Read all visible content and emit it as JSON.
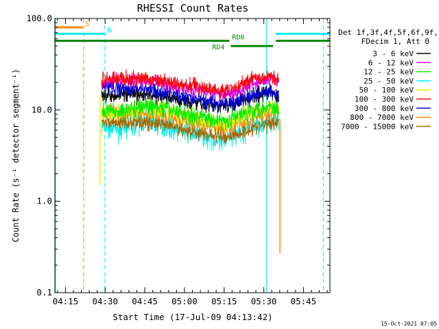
{
  "chart_data": {
    "type": "line",
    "title": "RHESSI Count Rates",
    "xlabel": "Start Time (17-Jul-09 04:13:42)",
    "ylabel": "Count Rate (s⁻¹ detector segment⁻¹)",
    "yscale": "log",
    "xlim_minutes": [
      -4,
      100
    ],
    "ylim": [
      0.1,
      100
    ],
    "x_ticks": [
      {
        "min": 0,
        "label": "04:15"
      },
      {
        "min": 15,
        "label": "04:30"
      },
      {
        "min": 30,
        "label": "04:45"
      },
      {
        "min": 45,
        "label": "05:00"
      },
      {
        "min": 60,
        "label": "05:15"
      },
      {
        "min": 75,
        "label": "05:30"
      },
      {
        "min": 90,
        "label": "05:45"
      }
    ],
    "y_ticks": [
      {
        "value": 0.1,
        "label": "0.1"
      },
      {
        "value": 1,
        "label": "1.0"
      },
      {
        "value": 10,
        "label": "10.0"
      },
      {
        "value": 100,
        "label": "100.0"
      }
    ],
    "legend_title": [
      "Det 1f,3f,4f,5f,6f,9f,",
      "FDecim 1, Att 0"
    ],
    "legend_position": "right",
    "grid": false,
    "series": [
      {
        "name": "3 - 6 keV",
        "color": "#000000",
        "noise": 0.045,
        "x": [
          13.7,
          20,
          30,
          40,
          50,
          60,
          65,
          70,
          75,
          78,
          80.7
        ],
        "y": [
          14.5,
          15,
          14.5,
          13.5,
          12,
          11,
          12,
          14,
          15,
          16,
          14
        ]
      },
      {
        "name": "6 - 12 keV",
        "color": "#e000e0",
        "noise": 0.04,
        "x": [
          13.7,
          20,
          30,
          40,
          50,
          60,
          65,
          70,
          75,
          78,
          80.7
        ],
        "y": [
          20,
          21,
          21,
          19,
          16.5,
          14.5,
          16,
          19.5,
          21,
          22,
          19
        ]
      },
      {
        "name": "12 - 25 keV",
        "color": "#00ee00",
        "noise": 0.05,
        "x": [
          13.7,
          20,
          30,
          40,
          50,
          60,
          65,
          70,
          75,
          78,
          80.7
        ],
        "y": [
          10,
          9.5,
          11,
          10,
          8.5,
          7.5,
          8.5,
          10,
          10.5,
          11,
          10
        ]
      },
      {
        "name": "25 - 50 keV",
        "color": "#00eeee",
        "noise": 0.06,
        "x": [
          13.7,
          20,
          30,
          40,
          50,
          60,
          65,
          70,
          75,
          78,
          80.7
        ],
        "y": [
          6.5,
          6.2,
          7.5,
          6.5,
          5.3,
          4.6,
          5.2,
          6.5,
          7.2,
          7.8,
          8
        ]
      },
      {
        "name": "50 - 100 keV",
        "color": "#eeee00",
        "noise": 0.05,
        "x": [
          13.7,
          20,
          30,
          40,
          50,
          60,
          65,
          70,
          75,
          78,
          80.7
        ],
        "y": [
          9.5,
          9,
          10.5,
          9.5,
          8,
          7,
          8,
          9.5,
          10,
          10.5,
          10
        ]
      },
      {
        "name": "100 - 300 keV",
        "color": "#ff0000",
        "noise": 0.04,
        "x": [
          13.7,
          20,
          30,
          40,
          50,
          60,
          65,
          70,
          75,
          78,
          80.7
        ],
        "y": [
          22,
          22,
          22,
          20,
          18,
          16,
          18,
          21.5,
          23,
          24,
          21
        ]
      },
      {
        "name": "300 - 800 keV",
        "color": "#0000dd",
        "noise": 0.045,
        "x": [
          13.7,
          20,
          30,
          40,
          50,
          60,
          65,
          70,
          75,
          78,
          80.7
        ],
        "y": [
          18,
          17.5,
          17,
          15,
          13,
          11.5,
          12.5,
          14,
          15,
          15.5,
          14
        ]
      },
      {
        "name": "800 - 7000 keV",
        "color": "#ff8800",
        "noise": 0.05,
        "x": [
          13.7,
          20,
          30,
          40,
          50,
          60,
          65,
          70,
          75,
          78,
          80.7
        ],
        "y": [
          9.5,
          9.2,
          9.2,
          8.3,
          7,
          6.3,
          6.8,
          7.8,
          8.5,
          9,
          9.5
        ]
      },
      {
        "name": "7000 - 15000 keV",
        "color": "#aa6600",
        "noise": 0.04,
        "x": [
          13.7,
          20,
          30,
          40,
          50,
          60,
          65,
          70,
          75,
          78,
          80.7
        ],
        "y": [
          7.5,
          7.3,
          7.3,
          6.6,
          5.6,
          5,
          5.4,
          6.2,
          6.8,
          7.2,
          7.5
        ]
      }
    ],
    "spikes": [
      {
        "color": "#eeee00",
        "x": 13.1,
        "y_from": 14,
        "y_to": 1.5
      },
      {
        "color": "#ff8800",
        "x": 81.1,
        "y_from": 8,
        "y_to": 0.27
      }
    ],
    "status_bars": [
      {
        "label": "S",
        "color": "#ff8800",
        "segments": [
          [
            -4,
            6.5
          ]
        ],
        "level_y": 80,
        "label_x": 7.5
      },
      {
        "label": "N",
        "color": "#00eeee",
        "segments": [
          [
            -4,
            14.9
          ],
          [
            79.5,
            100
          ]
        ],
        "level_y": 68,
        "label_x": 15.8
      },
      {
        "label": "RD0",
        "color": "#008800",
        "segments": [
          [
            -4,
            62
          ],
          [
            79.5,
            100
          ]
        ],
        "level_y": 57,
        "label_x": 63
      },
      {
        "label": "RD4",
        "color": "#008800",
        "segments": [
          [
            62.5,
            78.5
          ]
        ],
        "level_y": 50,
        "label_x": 55.5
      }
    ],
    "vertical_markers": [
      {
        "x": 6.9,
        "color": "#ff8800",
        "style": "dashed"
      },
      {
        "x": 14.9,
        "color": "#00eeee",
        "style": "dashed"
      },
      {
        "x": 76.0,
        "color": "#00eeee",
        "style": "solid"
      },
      {
        "x": 97.5,
        "color": "#00eeee",
        "style": "dashed"
      },
      {
        "x": -4,
        "color": "#00eeee",
        "style": "solid"
      }
    ],
    "timestamp": "15-Oct-2021 07:05"
  }
}
